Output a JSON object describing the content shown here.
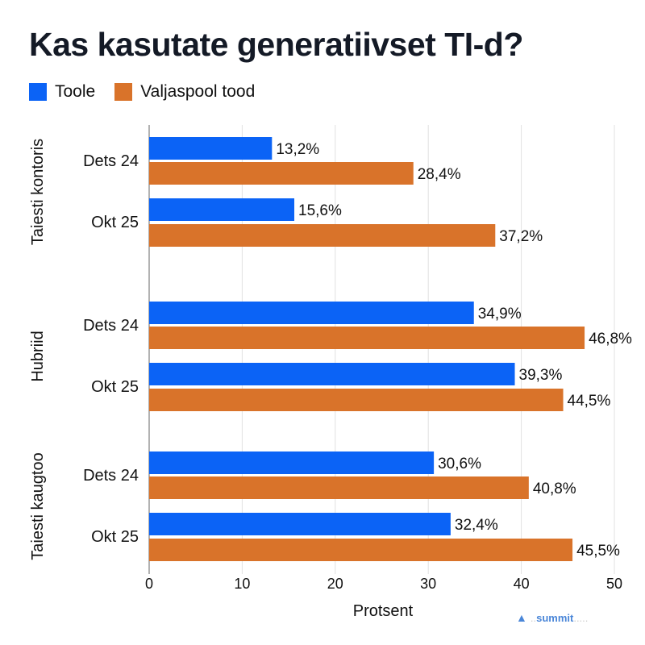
{
  "chart_data": {
    "type": "bar",
    "orientation": "horizontal",
    "title": "Kas kasutate generatiivset TI-d?",
    "xlabel": "Protsent",
    "ylabel": "",
    "xlim": [
      0,
      50
    ],
    "xticks": [
      0,
      10,
      20,
      30,
      40,
      50
    ],
    "grid": true,
    "legend_position": "top-left",
    "series": [
      {
        "name": "Toole",
        "color": "#0b63f6"
      },
      {
        "name": "Valjaspool tood",
        "color": "#d9732a"
      }
    ],
    "groups": [
      {
        "label": "Taiesti kontoris",
        "rows": [
          {
            "label": "Dets 24",
            "values": [
              13.2,
              28.4
            ],
            "data_labels": [
              "13,2%",
              "28,4%"
            ]
          },
          {
            "label": "Okt 25",
            "values": [
              15.6,
              37.2
            ],
            "data_labels": [
              "15,6%",
              "37,2%"
            ]
          }
        ]
      },
      {
        "label": "Hubriid",
        "rows": [
          {
            "label": "Dets 24",
            "values": [
              34.9,
              46.8
            ],
            "data_labels": [
              "34,9%",
              "46,8%"
            ]
          },
          {
            "label": "Okt 25",
            "values": [
              39.3,
              44.5
            ],
            "data_labels": [
              "39,3%",
              "44,5%"
            ]
          }
        ]
      },
      {
        "label": "Taiesti kaugtoo",
        "rows": [
          {
            "label": "Dets 24",
            "values": [
              30.6,
              40.8
            ],
            "data_labels": [
              "30,6%",
              "40,8%"
            ]
          },
          {
            "label": "Okt 25",
            "values": [
              32.4,
              45.5
            ],
            "data_labels": [
              "32,4%",
              "45,5%"
            ]
          }
        ]
      }
    ]
  },
  "watermark": "summit"
}
